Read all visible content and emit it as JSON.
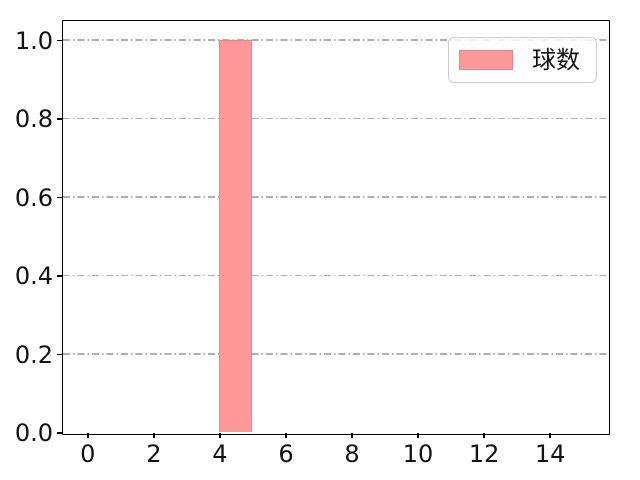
{
  "chart_data": {
    "type": "bar",
    "title": "",
    "xlabel": "",
    "ylabel": "",
    "xlim": [
      -0.75,
      15.75
    ],
    "ylim": [
      0,
      1.05
    ],
    "xticks": [
      0,
      2,
      4,
      6,
      8,
      10,
      12,
      14
    ],
    "yticks": [
      0.0,
      0.2,
      0.4,
      0.6,
      0.8,
      1.0
    ],
    "ytick_labels": [
      "0.0",
      "0.2",
      "0.4",
      "0.6",
      "0.8",
      "1.0"
    ],
    "grid": {
      "axis": "y",
      "linestyle": "dash-dot",
      "color": "#aeaeae"
    },
    "series": [
      {
        "name": "球数",
        "color": "#ff9999",
        "edge_color": "#f98080",
        "bars": [
          {
            "x_start": 4,
            "x_end": 5,
            "height": 1.0
          }
        ]
      }
    ],
    "legend": {
      "label": "球数",
      "position": "upper right",
      "swatch_color": "#ff9999",
      "swatch_edge_color": "#f98080"
    }
  }
}
